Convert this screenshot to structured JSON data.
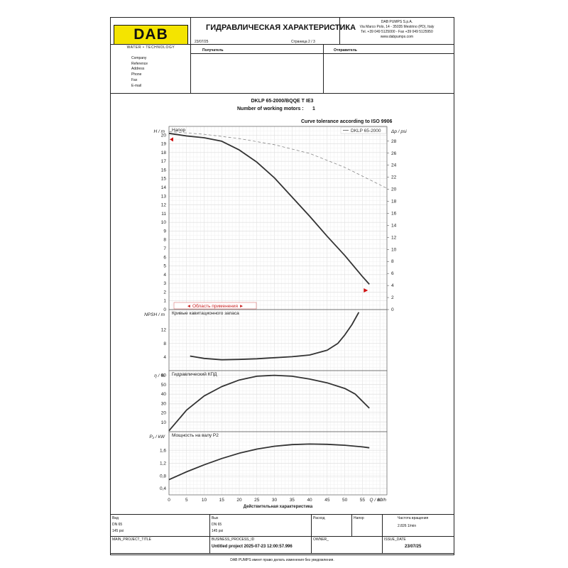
{
  "header": {
    "logo_text": "DAB",
    "tagline": "WATER • TECHNOLOGY",
    "title": "ГИДРАВЛИЧЕСКАЯ ХАРАКТЕРИСТИКА",
    "date": "23/07/25",
    "page": "Страница 2 / 3",
    "company_name": "DAB PUMPS S.p.A.",
    "company_address": "Via Marco Polo, 14 - 35035 Mestrino (PD), Italy",
    "company_phone": "Tel. +39 049 5125000 - Fax +39 049 5125950",
    "company_web": "www.dabpumps.com",
    "recipient_label": "Получатель",
    "sender_label": "Отправитель"
  },
  "contact_fields": [
    "Company",
    "Reference",
    "Address",
    "Phone",
    "Fax",
    "E-mail"
  ],
  "product": {
    "model": "DKLP 65-2000/BQQE T IE3",
    "motors_label": "Number of working motors :",
    "motors_value": "1",
    "tolerance": "Curve tolerance according to ISO 9906"
  },
  "chart_data": [
    {
      "type": "line",
      "title": "Напор",
      "ylabel": "H / m",
      "ylabel_right": "Δp / psi",
      "legend": "DKLP 65-2000",
      "range_label": "◄ Область применения ►",
      "xlim": [
        0,
        62
      ],
      "ylim": [
        0,
        21
      ],
      "yticks": [
        0,
        1,
        2,
        3,
        4,
        5,
        6,
        7,
        8,
        9,
        10,
        11,
        12,
        13,
        14,
        15,
        16,
        17,
        18,
        19,
        20
      ],
      "yticks_right": [
        0,
        2,
        4,
        6,
        8,
        10,
        12,
        14,
        16,
        18,
        20,
        22,
        24,
        26,
        28
      ],
      "series": [
        {
          "name": "DKLP 65-2000",
          "style": "solid",
          "x": [
            0,
            5,
            10,
            15,
            20,
            25,
            30,
            35,
            40,
            45,
            50,
            55,
            57
          ],
          "y": [
            20.2,
            19.9,
            19.7,
            19.3,
            18.3,
            16.9,
            15.1,
            12.9,
            10.7,
            8.4,
            6.2,
            3.8,
            2.9
          ]
        },
        {
          "style": "dashed",
          "x": [
            0,
            10,
            20,
            30,
            40,
            50,
            56,
            62
          ],
          "y": [
            20.4,
            20.1,
            19.6,
            18.9,
            17.9,
            16.3,
            15.1,
            13.9
          ]
        }
      ],
      "markers": [
        {
          "x": 0,
          "y": 19.5
        },
        {
          "x": 56,
          "y": 2.2
        }
      ]
    },
    {
      "type": "line",
      "title": "Кривые кавитационного запаса",
      "ylabel": "NPSH / m",
      "ylim": [
        0,
        18
      ],
      "yticks": [
        4,
        8,
        12
      ],
      "series": [
        {
          "x": [
            6,
            10,
            15,
            20,
            25,
            30,
            35,
            40,
            45,
            48,
            50,
            52,
            54
          ],
          "y": [
            4.3,
            3.6,
            3.2,
            3.3,
            3.5,
            3.8,
            4.1,
            4.6,
            6.0,
            8.0,
            10.5,
            13.5,
            17.2
          ]
        }
      ]
    },
    {
      "type": "line",
      "title": "Гидравлический КПД",
      "ylabel": "η / %",
      "ylim": [
        0,
        65
      ],
      "yticks": [
        10,
        20,
        30,
        40,
        50,
        60
      ],
      "series": [
        {
          "x": [
            0,
            5,
            10,
            15,
            20,
            25,
            30,
            35,
            40,
            45,
            50,
            53,
            57
          ],
          "y": [
            1,
            23,
            38,
            48,
            55,
            59,
            60,
            59,
            56,
            52,
            46,
            40,
            25
          ]
        }
      ]
    },
    {
      "type": "line",
      "title": "Мощность на валу P2",
      "ylabel": "P₂ / kW",
      "xlabel": "Действительная характеристика",
      "xunit": "Q / m³/h",
      "xlim": [
        0,
        62
      ],
      "ylim": [
        0.2,
        2.2
      ],
      "xticks": [
        0,
        5,
        10,
        15,
        20,
        25,
        30,
        35,
        40,
        45,
        50,
        55,
        60
      ],
      "yticks": [
        0.4,
        0.8,
        1.2,
        1.6
      ],
      "ytick_labels": [
        "0,4",
        "0,8",
        "1,2",
        "1,6"
      ],
      "series": [
        {
          "x": [
            0,
            5,
            10,
            15,
            20,
            25,
            30,
            35,
            40,
            45,
            50,
            55,
            57
          ],
          "y": [
            0.68,
            0.93,
            1.15,
            1.35,
            1.52,
            1.65,
            1.74,
            1.79,
            1.81,
            1.8,
            1.77,
            1.72,
            1.69
          ]
        }
      ]
    }
  ],
  "footer": {
    "type_label": "Вид",
    "type_dn": "DN 65",
    "type_psi": "145 psi",
    "out_label": "Вых",
    "out_dn": "DN 65",
    "out_psi": "145 psi",
    "flow_label": "Расход",
    "head_label": "Напор",
    "speed_label": "Частота вращения",
    "speed_value": "2.826 1/min",
    "project_label": "MAIN_PROJECT_TITLE",
    "process_label": "BUSINESS_PROCESS_ID",
    "process_value": "Untitled project 2025-07-23 12:00:57.996",
    "owner_label": "OWNER_",
    "issue_label": "ISSUE_DATE",
    "issue_value": "23/07/25",
    "disclaimer": "DAB PUMPS имеет право делать изменения без уведомления."
  }
}
